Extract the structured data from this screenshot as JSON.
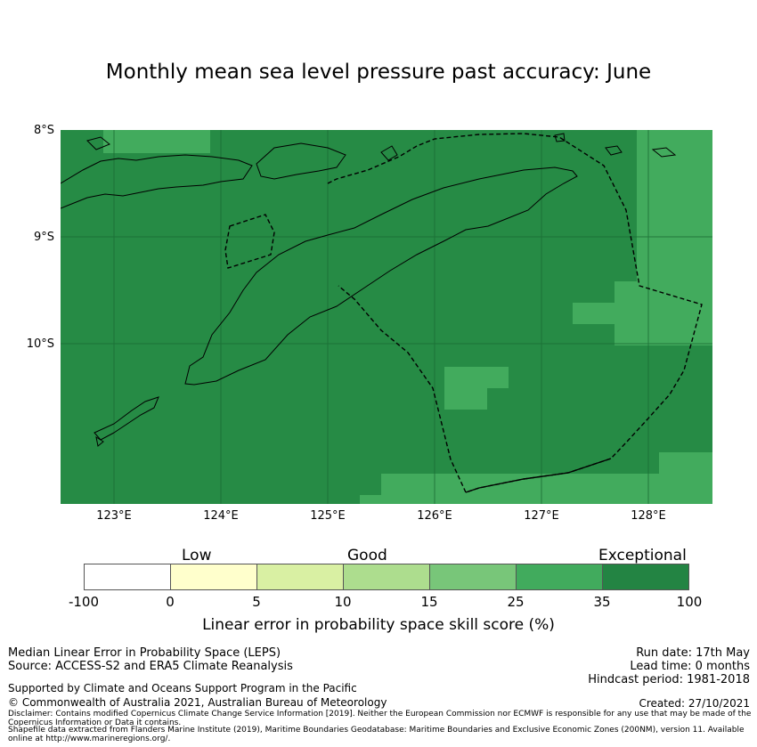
{
  "title": "Monthly mean sea level pressure past accuracy: June",
  "map": {
    "lat_labels": [
      "8°S",
      "9°S",
      "10°S"
    ],
    "lon_labels": [
      "123°E",
      "124°E",
      "125°E",
      "126°E",
      "127°E",
      "128°E"
    ],
    "extent": {
      "lon_min": 122.5,
      "lon_max": 128.6,
      "lat_min": -11.5,
      "lat_max": -8.0
    },
    "colors": {
      "ocean_dark": "#268b45",
      "ocean_light": "#42ab5d",
      "coast": "#000000",
      "eez_line": "#000000"
    }
  },
  "legend": {
    "categories": [
      "Low",
      "Good",
      "Exceptional"
    ],
    "ticks": [
      "-100",
      "0",
      "5",
      "10",
      "15",
      "25",
      "35",
      "100"
    ],
    "colors": [
      "#ffffff",
      "#ffffcc",
      "#d9f0a3",
      "#addd8e",
      "#78c679",
      "#41ab5d",
      "#238443"
    ],
    "label": "Linear error in probability space skill score (%)"
  },
  "footer": {
    "left1": "Median Linear Error in Probability Space (LEPS)",
    "left2": "Source: ACCESS-S2 and ERA5 Climate Reanalysis",
    "right1": "Run date: 17th May",
    "right2": "Lead time: 0 months",
    "right3": "Hindcast period: 1981-2018",
    "support": "Supported by Climate and Oceans Support Program in the Pacific",
    "copyright": "© Commonwealth of Australia 2021, Australian Bureau of Meteorology",
    "created": "Created: 27/10/2021",
    "disclaimer1": "Disclaimer: Contains modified Copernicus Climate Change Service Information [2019]. Neither the European Commission nor ECMWF is responsible for any use that may be made of the Copernicus Information or Data it contains.",
    "disclaimer2": "Shapefile data extracted from Flanders Marine Institute (2019), Maritime Boundaries Geodatabase: Maritime Boundaries and Exclusive Economic Zones (200NM), version 11. Available online at http://www.marineregions.org/."
  }
}
